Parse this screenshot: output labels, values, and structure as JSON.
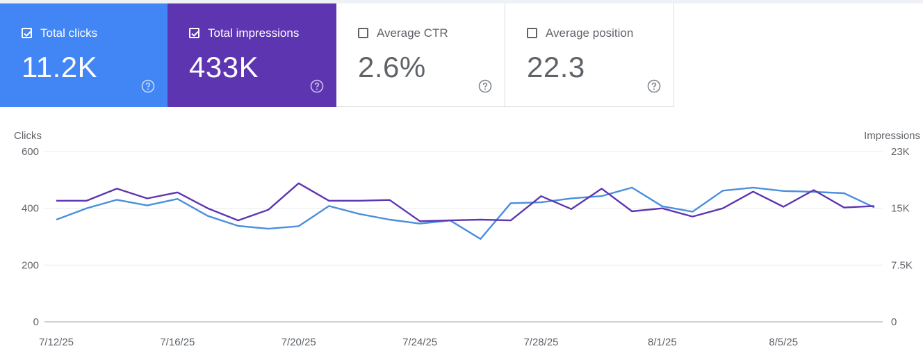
{
  "metrics": [
    {
      "label": "Total clicks",
      "value": "11.2K",
      "checked": true,
      "color": "#4285f4"
    },
    {
      "label": "Total impressions",
      "value": "433K",
      "checked": true,
      "color": "#5e35b1"
    },
    {
      "label": "Average CTR",
      "value": "2.6%",
      "checked": false,
      "color": "#ffffff"
    },
    {
      "label": "Average position",
      "value": "22.3",
      "checked": false,
      "color": "#ffffff"
    }
  ],
  "icons": {
    "checkbox": "checkbox-icon",
    "help": "help-circle-icon"
  },
  "chart_data": {
    "type": "line",
    "ylabel_left": "Clicks",
    "ylabel_right": "Impressions",
    "yticks_left": [
      "0",
      "200",
      "400",
      "600"
    ],
    "yticks_right": [
      "0",
      "7.5K",
      "15K",
      "23K"
    ],
    "ylim_left": [
      0,
      600
    ],
    "ylim_right": [
      0,
      22500
    ],
    "x": [
      "7/12/25",
      "7/13/25",
      "7/14/25",
      "7/15/25",
      "7/16/25",
      "7/17/25",
      "7/18/25",
      "7/19/25",
      "7/20/25",
      "7/21/25",
      "7/22/25",
      "7/23/25",
      "7/24/25",
      "7/25/25",
      "7/26/25",
      "7/27/25",
      "7/28/25",
      "7/29/25",
      "7/30/25",
      "7/31/25",
      "8/1/25",
      "8/2/25",
      "8/3/25",
      "8/4/25",
      "8/5/25",
      "8/6/25",
      "8/7/25",
      "8/8/25"
    ],
    "xtick_labels": [
      "7/12/25",
      "7/16/25",
      "7/20/25",
      "7/24/25",
      "7/28/25",
      "8/1/25",
      "8/5/25"
    ],
    "grid": true,
    "series": [
      {
        "name": "Clicks",
        "axis": "left",
        "color": "#4a8fdd",
        "values": [
          360,
          400,
          430,
          410,
          433,
          373,
          338,
          328,
          337,
          408,
          380,
          360,
          346,
          357,
          292,
          418,
          421,
          435,
          443,
          473,
          407,
          388,
          462,
          473,
          461,
          458,
          453,
          403
        ]
      },
      {
        "name": "Impressions",
        "axis": "right",
        "color": "#5e35b1",
        "values": [
          16000,
          16000,
          17600,
          16300,
          17100,
          15000,
          13400,
          14800,
          18300,
          16000,
          16000,
          16100,
          13300,
          13400,
          13500,
          13400,
          16600,
          14900,
          17600,
          14600,
          15000,
          13900,
          15000,
          17200,
          15200,
          17400,
          15100,
          15300
        ]
      }
    ]
  }
}
